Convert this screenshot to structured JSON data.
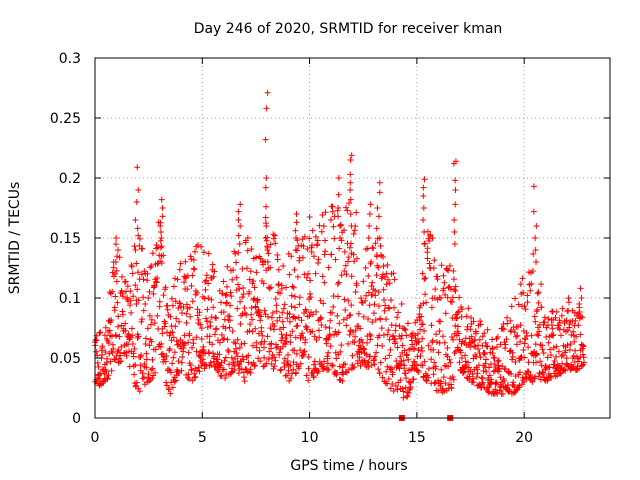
{
  "chart_data": {
    "type": "scatter",
    "title": "Day 246 of 2020, SRMTID for receiver kman",
    "xlabel": "GPS time / hours",
    "ylabel": "SRMTID / TECUs",
    "xlim": [
      0,
      24
    ],
    "ylim": [
      0,
      0.3
    ],
    "grid": true,
    "marker": "+",
    "color": "#ff0000",
    "x_ticks": [
      0,
      5,
      10,
      15,
      20
    ],
    "x_tick_labels": [
      "0",
      "5",
      "10",
      "15",
      "20"
    ],
    "y_ticks": [
      0,
      0.05,
      0.1,
      0.15,
      0.2,
      0.25,
      0.3
    ],
    "y_tick_labels": [
      "0",
      "0.05",
      "0.1",
      "0.15",
      "0.2",
      "0.25",
      "0.3"
    ],
    "data_gaps_at_zero": [
      14.3,
      16.55
    ],
    "envelope": {
      "x": [
        0.0,
        0.5,
        1.0,
        1.5,
        2.0,
        2.5,
        3.0,
        3.5,
        4.0,
        4.5,
        5.0,
        5.5,
        6.0,
        6.5,
        7.0,
        7.5,
        8.0,
        8.5,
        9.0,
        9.5,
        10.0,
        10.5,
        11.0,
        11.5,
        12.0,
        12.5,
        13.0,
        13.5,
        14.0,
        14.5,
        15.0,
        15.5,
        16.0,
        16.5,
        17.0,
        17.5,
        18.0,
        18.5,
        19.0,
        19.5,
        20.0,
        20.5,
        21.0,
        21.5,
        22.0,
        22.5,
        22.8
      ],
      "low": [
        0.025,
        0.03,
        0.045,
        0.05,
        0.02,
        0.03,
        0.04,
        0.02,
        0.04,
        0.03,
        0.04,
        0.045,
        0.03,
        0.04,
        0.03,
        0.045,
        0.04,
        0.04,
        0.03,
        0.04,
        0.03,
        0.04,
        0.04,
        0.03,
        0.04,
        0.04,
        0.045,
        0.03,
        0.02,
        0.015,
        0.04,
        0.03,
        0.02,
        0.02,
        0.04,
        0.03,
        0.025,
        0.02,
        0.02,
        0.02,
        0.03,
        0.03,
        0.03,
        0.035,
        0.04,
        0.04,
        0.045
      ],
      "high": [
        0.07,
        0.08,
        0.15,
        0.12,
        0.16,
        0.13,
        0.17,
        0.11,
        0.13,
        0.14,
        0.15,
        0.13,
        0.12,
        0.14,
        0.16,
        0.14,
        0.17,
        0.15,
        0.14,
        0.15,
        0.17,
        0.17,
        0.18,
        0.17,
        0.19,
        0.14,
        0.15,
        0.15,
        0.12,
        0.08,
        0.08,
        0.17,
        0.13,
        0.14,
        0.1,
        0.09,
        0.08,
        0.07,
        0.08,
        0.1,
        0.12,
        0.14,
        0.09,
        0.09,
        0.1,
        0.1,
        0.09
      ]
    },
    "spikes": [
      {
        "x": 1.0,
        "values": [
          0.15,
          0.14,
          0.13,
          0.12
        ]
      },
      {
        "x": 1.95,
        "values": [
          0.209,
          0.19,
          0.18,
          0.165,
          0.158,
          0.152,
          0.14
        ]
      },
      {
        "x": 3.1,
        "values": [
          0.182,
          0.175,
          0.168,
          0.16,
          0.155,
          0.15,
          0.142,
          0.135
        ]
      },
      {
        "x": 6.7,
        "values": [
          0.178,
          0.172,
          0.165,
          0.16,
          0.152,
          0.145
        ]
      },
      {
        "x": 8.0,
        "values": [
          0.271,
          0.258,
          0.232,
          0.2,
          0.192,
          0.176,
          0.16,
          0.15,
          0.14,
          0.13
        ]
      },
      {
        "x": 9.4,
        "values": [
          0.17,
          0.163,
          0.156,
          0.15,
          0.14
        ]
      },
      {
        "x": 11.4,
        "values": [
          0.2,
          0.186,
          0.175,
          0.168,
          0.16,
          0.15
        ]
      },
      {
        "x": 11.9,
        "values": [
          0.219,
          0.215,
          0.203,
          0.196,
          0.19,
          0.182,
          0.17,
          0.16
        ]
      },
      {
        "x": 12.8,
        "values": [
          0.178,
          0.17,
          0.16,
          0.15
        ]
      },
      {
        "x": 13.2,
        "values": [
          0.196,
          0.188,
          0.175,
          0.168,
          0.158,
          0.15
        ]
      },
      {
        "x": 15.35,
        "values": [
          0.199,
          0.192,
          0.185,
          0.175,
          0.165,
          0.155,
          0.145
        ]
      },
      {
        "x": 16.8,
        "values": [
          0.214,
          0.212,
          0.198,
          0.19,
          0.178,
          0.165,
          0.155,
          0.145
        ]
      },
      {
        "x": 20.5,
        "values": [
          0.193,
          0.172,
          0.16,
          0.15,
          0.14,
          0.13
        ]
      },
      {
        "x": 22.6,
        "values": [
          0.108,
          0.1,
          0.095
        ]
      }
    ],
    "sample_interval_hours": 0.012,
    "points_per_epoch": 1
  }
}
